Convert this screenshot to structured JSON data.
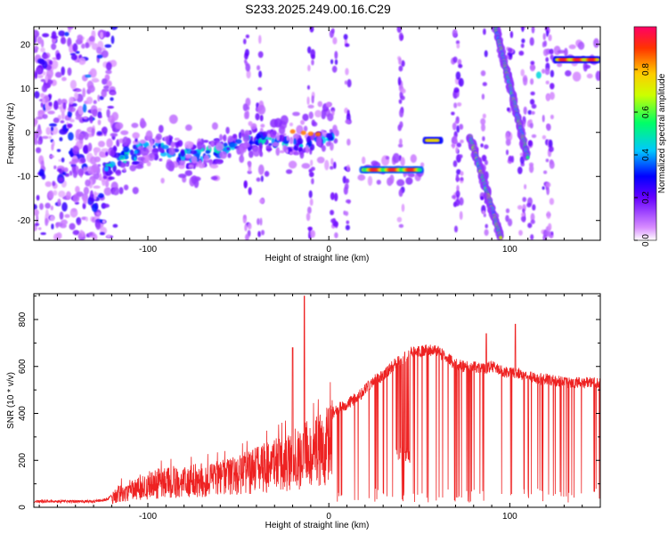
{
  "title": "S233.2025.249.00.16.C29",
  "chart_data": [
    {
      "type": "heatmap",
      "name": "spectrogram",
      "xlabel": "Height of straight line (km)",
      "ylabel": "Frequency (Hz)",
      "xlim": [
        -163,
        150
      ],
      "ylim": [
        -24.5,
        24
      ],
      "xticks": [
        -100,
        0,
        100
      ],
      "yticks": [
        -20,
        -10,
        0,
        10,
        20
      ],
      "colorbar": {
        "label": "Normalized spectral amplitude",
        "range": [
          0,
          1
        ],
        "ticks": [
          "0.0",
          "0.2",
          "0.4",
          "0.6",
          "0.8"
        ],
        "colors": [
          "#ffffff",
          "#cc66ff",
          "#6600ff",
          "#0000ff",
          "#00ccff",
          "#00ff66",
          "#ccff00",
          "#ffcc00",
          "#ff3300",
          "#ff0066"
        ]
      },
      "features": [
        {
          "desc": "scattered noise",
          "x": [
            -163,
            -118
          ],
          "y": [
            -24,
            24
          ],
          "amp": 0.3
        },
        {
          "desc": "rising band",
          "x": [
            -124,
            2
          ],
          "y_start": -6,
          "y_end": -2,
          "amp": 0.5
        },
        {
          "desc": "strong segment",
          "x": [
            18,
            52
          ],
          "y": -8.5,
          "amp": 0.95
        },
        {
          "desc": "short segment",
          "x": [
            53,
            62
          ],
          "y": -1.8,
          "amp": 0.75
        },
        {
          "desc": "sloped line",
          "x": [
            78,
            95
          ],
          "y_start": -1,
          "y_end": -24,
          "amp": 0.6
        },
        {
          "desc": "sloped line",
          "x": [
            92,
            110
          ],
          "y_start": 24,
          "y_end": -6,
          "amp": 0.6
        },
        {
          "desc": "flat segment",
          "x": [
            125,
            150
          ],
          "y": 16.5,
          "amp": 0.95
        }
      ]
    },
    {
      "type": "line",
      "name": "snr",
      "xlabel": "Height of straight line (km)",
      "ylabel": "SNR (10 * v/v)",
      "xlim": [
        -163,
        150
      ],
      "ylim": [
        0,
        910
      ],
      "xticks": [
        -100,
        0,
        100
      ],
      "yticks": [
        0,
        200,
        400,
        600,
        800
      ],
      "color": "#ee2222",
      "envelope": {
        "x": [
          -163,
          -130,
          -122,
          -115,
          -105,
          -95,
          -85,
          -75,
          -65,
          -55,
          -45,
          -35,
          -28,
          -22,
          -16,
          -12,
          -8,
          -3,
          0,
          5,
          10,
          15,
          20,
          25,
          30,
          35,
          40,
          45,
          50,
          55,
          60,
          65,
          70,
          75,
          80,
          85,
          90,
          95,
          100,
          105,
          110,
          115,
          120,
          125,
          130,
          140,
          150
        ],
        "base": [
          25,
          25,
          35,
          90,
          120,
          145,
          155,
          160,
          170,
          180,
          210,
          240,
          260,
          280,
          300,
          320,
          330,
          355,
          390,
          420,
          440,
          465,
          500,
          540,
          560,
          600,
          630,
          660,
          665,
          670,
          665,
          640,
          610,
          600,
          600,
          590,
          600,
          580,
          575,
          570,
          560,
          545,
          545,
          540,
          530,
          530,
          530
        ]
      }
    }
  ]
}
